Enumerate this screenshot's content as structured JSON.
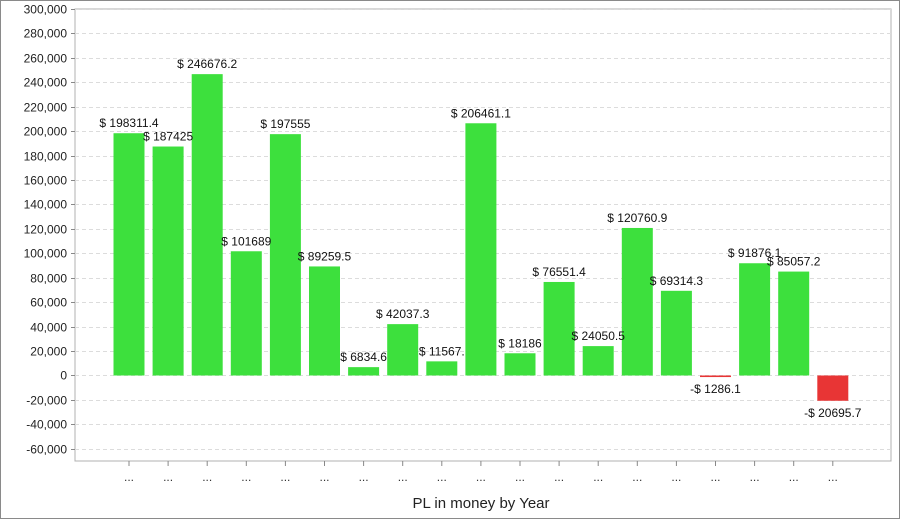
{
  "chart_data": {
    "type": "bar",
    "xlabel": "PL in money by Year",
    "ylabel": "",
    "ylim": [
      -70000,
      300000
    ],
    "y_ticks": [
      "300,000",
      "280,000",
      "260,000",
      "240,000",
      "220,000",
      "200,000",
      "180,000",
      "160,000",
      "140,000",
      "120,000",
      "100,000",
      "80,000",
      "60,000",
      "40,000",
      "20,000",
      "0",
      "-20,000",
      "-40,000",
      "-60,000"
    ],
    "y_tick_values": [
      300000,
      280000,
      260000,
      240000,
      220000,
      200000,
      180000,
      160000,
      140000,
      120000,
      100000,
      80000,
      60000,
      40000,
      20000,
      0,
      -20000,
      -40000,
      -60000
    ],
    "categories": [
      "...",
      "...",
      "...",
      "...",
      "...",
      "...",
      "...",
      "...",
      "...",
      "...",
      "...",
      "...",
      "...",
      "...",
      "...",
      "...",
      "...",
      "...",
      "..."
    ],
    "values": [
      198311.4,
      187425,
      246676.2,
      101689,
      197555,
      89259.5,
      6834.6,
      42037.3,
      11567,
      206461.1,
      18186,
      76551.4,
      24050.5,
      120760.9,
      69314.3,
      -1286.1,
      91876.1,
      85057.2,
      -20695.7
    ],
    "data_labels": [
      "$ 198311.4",
      "$ 187425",
      "$ 246676.2",
      "$ 101689",
      "$ 197555",
      "$ 89259.5",
      "$ 6834.6",
      "$ 42037.3",
      "$ 11567.",
      "$ 206461.1",
      "$ 18186",
      "$ 76551.4",
      "$ 24050.5",
      "$ 120760.9",
      "$ 69314.3",
      "-$ 1286.1",
      "$ 91876.1",
      "$ 85057.2",
      "-$ 20695.7"
    ],
    "grid": true,
    "colors": {
      "positive": "#3de03d",
      "negative": "#e83535"
    }
  }
}
